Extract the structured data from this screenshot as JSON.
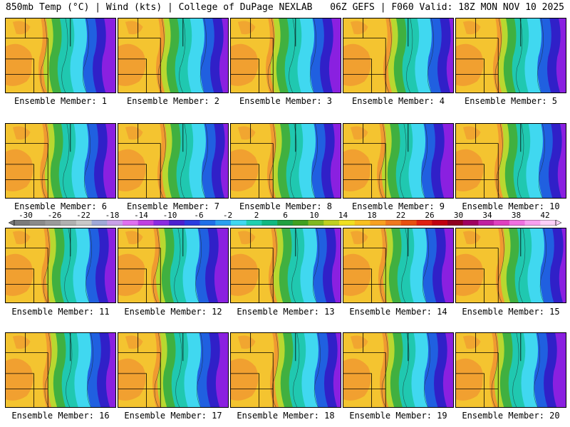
{
  "header": {
    "left": "850mb Temp (°C) | Wind (kts) | College of DuPage NEXLAB",
    "right": "06Z GEFS | F060 Valid: 18Z MON NOV 10 2025"
  },
  "panels": [
    {
      "label": "Ensemble Member: 1"
    },
    {
      "label": "Ensemble Member: 2"
    },
    {
      "label": "Ensemble Member: 3"
    },
    {
      "label": "Ensemble Member: 4"
    },
    {
      "label": "Ensemble Member: 5"
    },
    {
      "label": "Ensemble Member: 6"
    },
    {
      "label": "Ensemble Member: 7"
    },
    {
      "label": "Ensemble Member: 8"
    },
    {
      "label": "Ensemble Member: 9"
    },
    {
      "label": "Ensemble Member: 10"
    },
    {
      "label": "Ensemble Member: 11"
    },
    {
      "label": "Ensemble Member: 12"
    },
    {
      "label": "Ensemble Member: 13"
    },
    {
      "label": "Ensemble Member: 14"
    },
    {
      "label": "Ensemble Member: 15"
    },
    {
      "label": "Ensemble Member: 16"
    },
    {
      "label": "Ensemble Member: 17"
    },
    {
      "label": "Ensemble Member: 18"
    },
    {
      "label": "Ensemble Member: 19"
    },
    {
      "label": "Ensemble Member: 20"
    }
  ],
  "colorbar": {
    "unit": "°C",
    "ticks": [
      "-30",
      "-26",
      "-22",
      "-18",
      "-14",
      "-10",
      "-6",
      "-2",
      "2",
      "6",
      "10",
      "14",
      "18",
      "22",
      "26",
      "30",
      "34",
      "38",
      "42"
    ],
    "colors": [
      "#7a7a7a",
      "#8a8a8a",
      "#9a9a9a",
      "#b0b0b0",
      "#c8c8c8",
      "#9fa8d8",
      "#c9a0e8",
      "#e070f0",
      "#c040e0",
      "#8a2be2",
      "#4b1fd0",
      "#2a3ce0",
      "#1f6fe8",
      "#2aa0f0",
      "#40d8f0",
      "#20d0b0",
      "#10b880",
      "#20a040",
      "#40a020",
      "#80b820",
      "#c0d020",
      "#f0e020",
      "#f8c020",
      "#f8a020",
      "#f07820",
      "#e85010",
      "#e02010",
      "#c00010",
      "#900020",
      "#a00060",
      "#c020a0",
      "#e040c0",
      "#f070e0",
      "#f8a0f0",
      "#fcd0f8"
    ]
  },
  "colors": {
    "warm_west": "#f4c430",
    "orange": "#f09a30",
    "yellow_green": "#b8d830",
    "green": "#40b040",
    "teal": "#20c8b0",
    "cyan": "#40d8f0",
    "blue": "#2060e0",
    "indigo": "#3020c8",
    "purple": "#8a20e0",
    "magenta": "#c040e0"
  }
}
